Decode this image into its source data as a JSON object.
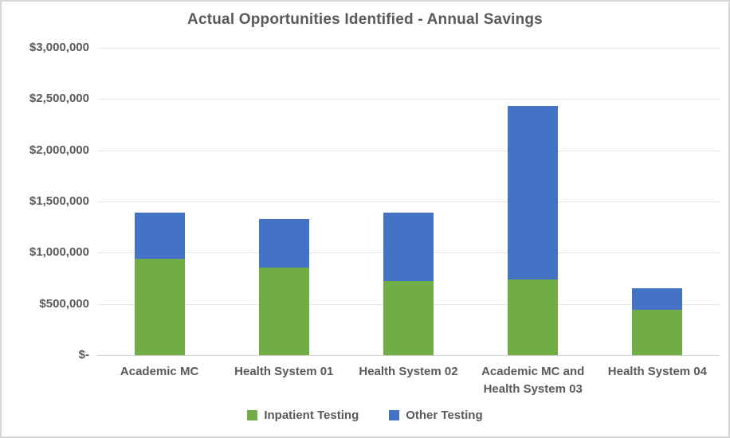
{
  "chart_data": {
    "type": "bar",
    "stacked": true,
    "title": "Actual Opportunities Identified - Annual Savings",
    "categories": [
      "Academic MC",
      "Health System 01",
      "Health System 02",
      "Academic MC and Health System 03",
      "Health System 04"
    ],
    "series": [
      {
        "name": "Inpatient Testing",
        "color": "#70AD47",
        "values": [
          940000,
          855000,
          720000,
          735000,
          440000
        ]
      },
      {
        "name": "Other Testing",
        "color": "#4472C4",
        "values": [
          450000,
          475000,
          675000,
          1700000,
          210000
        ]
      }
    ],
    "totals": [
      1390000,
      1330000,
      1395000,
      2435000,
      650000
    ],
    "xlabel": "",
    "ylabel": "",
    "ylim": [
      0,
      3000000
    ],
    "ytick_step": 500000,
    "ytick_labels": [
      "$-",
      "$500,000",
      "$1,000,000",
      "$1,500,000",
      "$2,000,000",
      "$2,500,000",
      "$3,000,000"
    ],
    "grid": true,
    "legend_position": "bottom"
  },
  "colors": {
    "text": "#595959",
    "gridline": "#E6E6E6",
    "axis_line": "#D2D2D2",
    "border": "#D6D6D6",
    "background": "#FFFFFF",
    "series_green": "#70AD47",
    "series_blue": "#4472C4"
  }
}
